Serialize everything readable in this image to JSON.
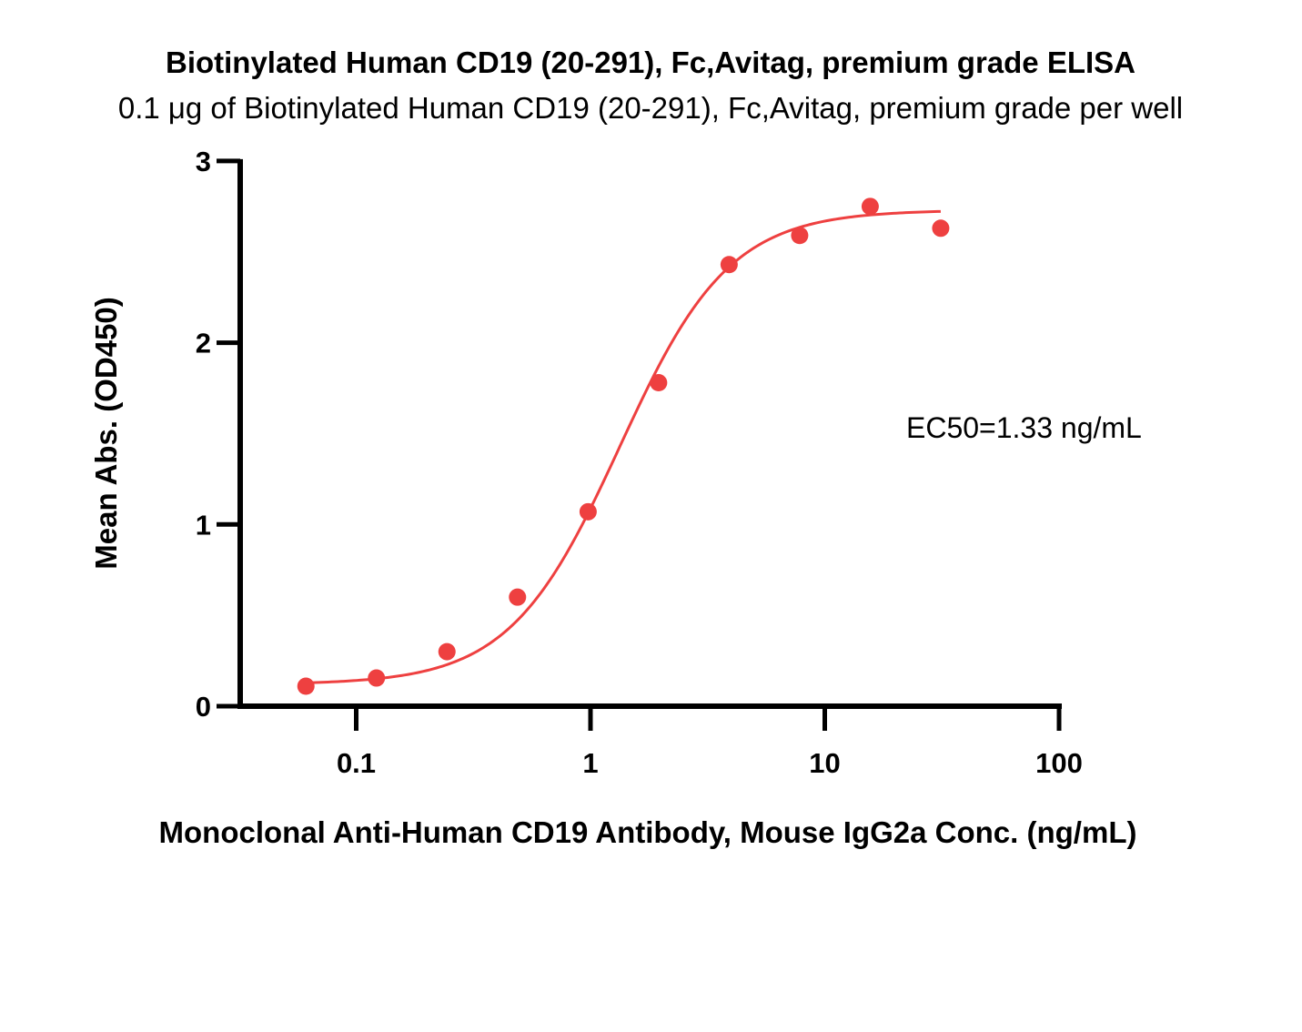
{
  "chart_data": {
    "type": "scatter",
    "title": "Biotinylated Human CD19 (20-291), Fc,Avitag, premium grade ELISA",
    "subtitle": "0.1 μg of Biotinylated Human CD19 (20-291), Fc,Avitag, premium grade per well",
    "xlabel": "Monoclonal Anti-Human CD19 Antibody, Mouse IgG2a Conc. (ng/mL)",
    "ylabel": "Mean Abs. (OD450)",
    "x_scale": "log",
    "xlim": [
      0.025,
      100
    ],
    "ylim": [
      0,
      3
    ],
    "x_ticks": [
      0.1,
      1,
      10,
      100
    ],
    "x_tick_labels": [
      "0.1",
      "1",
      "10",
      "100"
    ],
    "y_ticks": [
      0,
      1,
      2,
      3
    ],
    "y_tick_labels": [
      "0",
      "1",
      "2",
      "3"
    ],
    "grid": false,
    "color": "#ee4040",
    "points": {
      "x": [
        0.061,
        0.122,
        0.244,
        0.488,
        0.977,
        1.953,
        3.906,
        7.813,
        15.625,
        31.25
      ],
      "y": [
        0.11,
        0.155,
        0.3,
        0.6,
        1.07,
        1.78,
        2.43,
        2.59,
        2.75,
        2.63
      ]
    },
    "fit": {
      "model": "4PL",
      "bottom": 0.12,
      "top": 2.73,
      "ec50": 1.33,
      "hill": 1.85,
      "x_range": [
        0.061,
        31.25
      ]
    },
    "annotation": "EC50=1.33 ng/mL"
  }
}
